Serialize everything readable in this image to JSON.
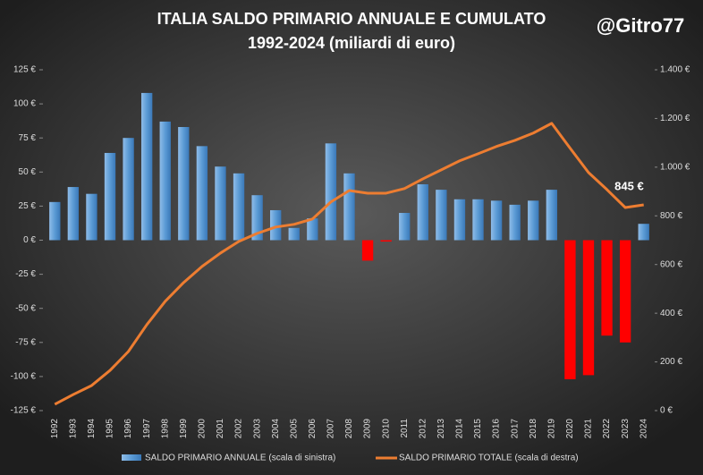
{
  "chart_data": {
    "type": "bar_line",
    "title": "ITALIA SALDO PRIMARIO ANNUALE E CUMULATO",
    "subtitle": "1992-2024 (miliardi  di euro)",
    "watermark": "@Gitro77",
    "categories": [
      "1992",
      "1993",
      "1994",
      "1995",
      "1996",
      "1997",
      "1998",
      "1999",
      "2000",
      "2001",
      "2002",
      "2003",
      "2004",
      "2005",
      "2006",
      "2007",
      "2008",
      "2009",
      "2010",
      "2011",
      "2012",
      "2013",
      "2014",
      "2015",
      "2016",
      "2017",
      "2018",
      "2019",
      "2020",
      "2021",
      "2022",
      "2023",
      "2024"
    ],
    "series": [
      {
        "name": "SALDO PRIMARIO ANNUALE (scala di sinistra)",
        "type": "bar",
        "color": "#5b9bd5",
        "negative_color": "#ff0000",
        "values": [
          28,
          39,
          34,
          64,
          75,
          108,
          87,
          83,
          69,
          54,
          49,
          33,
          22,
          9,
          16,
          71,
          49,
          -15,
          -1,
          20,
          41,
          37,
          30,
          30,
          29,
          26,
          29,
          37,
          -102,
          -99,
          -70,
          -75,
          12
        ]
      },
      {
        "name": "SALDO PRIMARIO TOTALE (scala di destra)",
        "type": "line",
        "axis": "y2",
        "color": "#ed7d31",
        "values": [
          26,
          66,
          103,
          165,
          243,
          353,
          449,
          526,
          592,
          647,
          695,
          728,
          754,
          765,
          787,
          857,
          904,
          893,
          893,
          912,
          952,
          989,
          1026,
          1055,
          1085,
          1110,
          1140,
          1180,
          1078,
          978,
          908,
          834,
          845
        ],
        "value_labels": [
          null,
          null,
          null,
          null,
          null,
          null,
          null,
          null,
          null,
          null,
          null,
          null,
          null,
          null,
          null,
          null,
          null,
          null,
          null,
          null,
          null,
          null,
          null,
          null,
          null,
          null,
          null,
          null,
          null,
          null,
          null,
          null,
          "845 €"
        ]
      }
    ],
    "ylim": [
      -125,
      125
    ],
    "yticks": [
      {
        "value": -125,
        "label": "-125 €"
      },
      {
        "value": -100,
        "label": "-100 €"
      },
      {
        "value": -75,
        "label": "-75 €"
      },
      {
        "value": -50,
        "label": "-50 €"
      },
      {
        "value": -25,
        "label": "-25 €"
      },
      {
        "value": 0,
        "label": "0 €"
      },
      {
        "value": 25,
        "label": "25 €"
      },
      {
        "value": 50,
        "label": "50 €"
      },
      {
        "value": 75,
        "label": "75 €"
      },
      {
        "value": 100,
        "label": "100 €"
      },
      {
        "value": 125,
        "label": "125 €"
      }
    ],
    "y2lim": [
      0,
      1400
    ],
    "y2ticks": [
      {
        "value": 0,
        "label": "0 €"
      },
      {
        "value": 200,
        "label": "200 €"
      },
      {
        "value": 400,
        "label": "400 €"
      },
      {
        "value": 600,
        "label": "600 €"
      },
      {
        "value": 800,
        "label": "800 €"
      },
      {
        "value": 1000,
        "label": "1.000 €"
      },
      {
        "value": 1200,
        "label": "1.200 €"
      },
      {
        "value": 1400,
        "label": "1.400 €"
      }
    ],
    "grid": false,
    "legend": "bottom"
  }
}
